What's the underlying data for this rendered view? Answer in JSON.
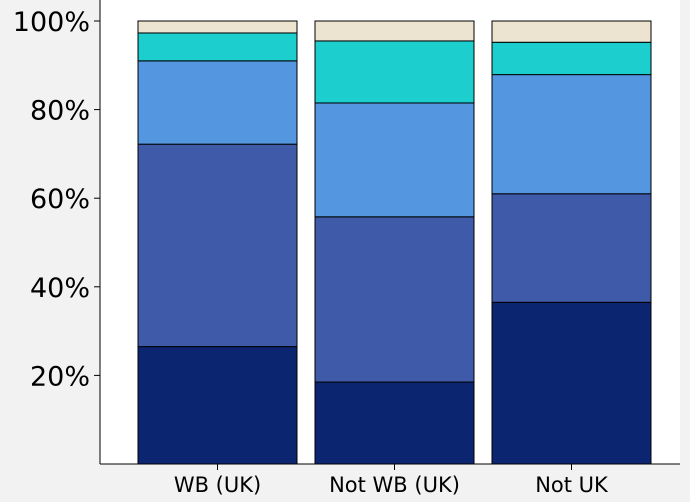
{
  "chart_data": {
    "type": "bar",
    "stacked": true,
    "categories": [
      "WB (UK)",
      "Not WB (UK)",
      "Not UK"
    ],
    "series": [
      {
        "color": "#0b2570",
        "values": [
          26.5,
          18.5,
          36.5
        ]
      },
      {
        "color": "#3f5aa8",
        "values": [
          45.7,
          37.3,
          24.5
        ]
      },
      {
        "color": "#5596e0",
        "values": [
          18.8,
          25.7,
          26.9
        ]
      },
      {
        "color": "#1ccece",
        "values": [
          6.3,
          14.0,
          7.3
        ]
      },
      {
        "color": "#ece3d1",
        "values": [
          2.7,
          4.5,
          4.8
        ]
      }
    ],
    "ylim": [
      0,
      100
    ],
    "yticks": [
      20,
      40,
      60,
      80,
      100
    ],
    "ytick_labels": [
      "20%",
      "40%",
      "60%",
      "80%",
      "100%"
    ],
    "grid": false,
    "legend": "none"
  }
}
